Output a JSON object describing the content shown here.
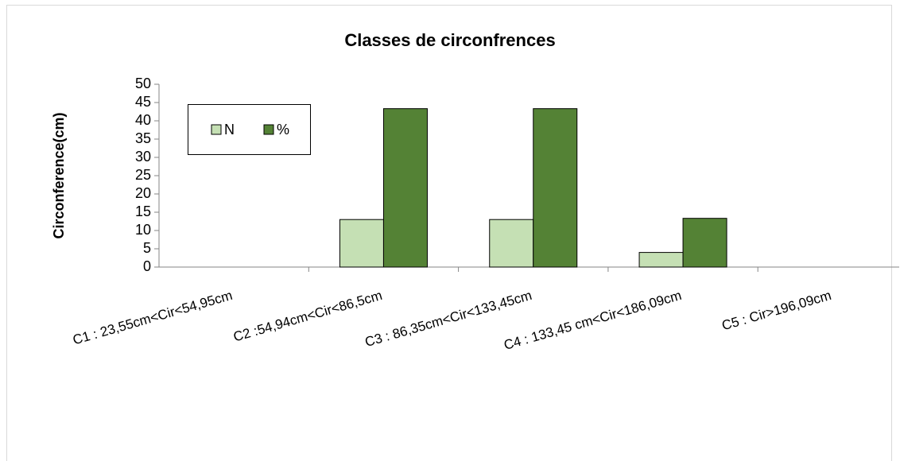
{
  "chart_data": {
    "type": "bar",
    "title": "Classes de circonfrences",
    "y_label": "Circonference(cm)",
    "categories": [
      "C1 : 23,55cm<Cir<54,95cm",
      "C2 :54,94cm<Cir<86,5cm",
      "C3 : 86,35cm<Cir<133,45cm",
      "C4 : 133,45 cm<Cir<186,09cm",
      "C5 : Cir>196,09cm"
    ],
    "series": [
      {
        "name": "N",
        "color": "#c5e0b4",
        "values": [
          0,
          13,
          13,
          4,
          0
        ]
      },
      {
        "name": "%",
        "color": "#548235",
        "values": [
          0,
          43.33,
          43.33,
          13.33,
          0
        ]
      }
    ],
    "ylim": [
      0,
      50
    ],
    "yticks": [
      0,
      5,
      10,
      15,
      20,
      25,
      30,
      35,
      40,
      45,
      50
    ],
    "legend": "upper left"
  }
}
